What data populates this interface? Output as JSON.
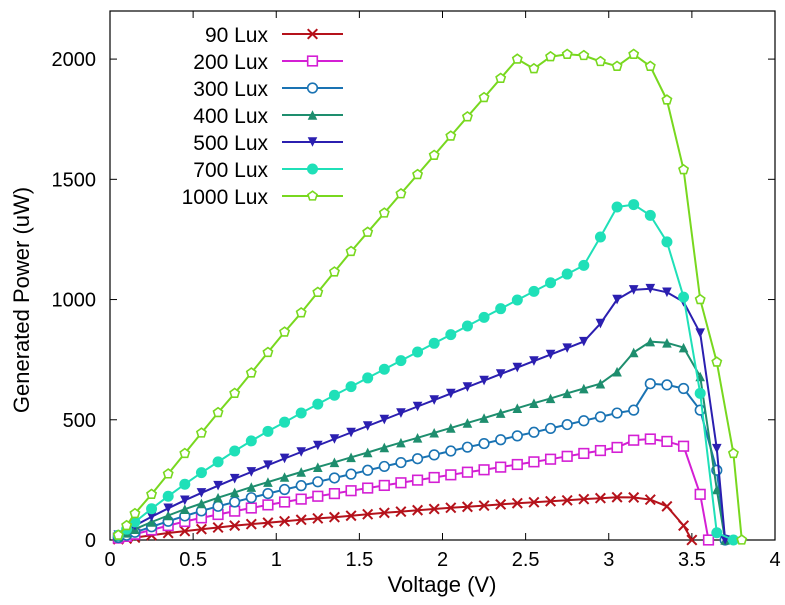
{
  "chart_data": {
    "type": "line",
    "title": "",
    "xlabel": "Voltage (V)",
    "ylabel": "Generated Power (uW)",
    "xlim": [
      0,
      4
    ],
    "ylim": [
      0,
      2200
    ],
    "xticks": [
      0,
      0.5,
      1,
      1.5,
      2,
      2.5,
      3,
      3.5,
      4
    ],
    "yticks": [
      0,
      500,
      1000,
      1500,
      2000
    ],
    "grid": false,
    "legend_position": "top-left",
    "series": [
      {
        "name": "90 Lux",
        "color": "#b5121b",
        "marker": "x",
        "x": [
          0.05,
          0.1,
          0.15,
          0.25,
          0.35,
          0.45,
          0.55,
          0.65,
          0.75,
          0.85,
          0.95,
          1.05,
          1.15,
          1.25,
          1.35,
          1.45,
          1.55,
          1.65,
          1.75,
          1.85,
          1.95,
          2.05,
          2.15,
          2.25,
          2.35,
          2.45,
          2.55,
          2.65,
          2.75,
          2.85,
          2.95,
          3.05,
          3.15,
          3.25,
          3.35,
          3.45,
          3.5
        ],
        "y": [
          3,
          6,
          10,
          20,
          29,
          37,
          45,
          52,
          60,
          66,
          72,
          78,
          84,
          90,
          95,
          101,
          107,
          113,
          118,
          124,
          129,
          134,
          138,
          143,
          148,
          153,
          157,
          161,
          165,
          170,
          174,
          178,
          177,
          168,
          140,
          60,
          0
        ]
      },
      {
        "name": "200 Lux",
        "color": "#d41fd4",
        "marker": "square",
        "x": [
          0.05,
          0.1,
          0.15,
          0.25,
          0.35,
          0.45,
          0.55,
          0.65,
          0.75,
          0.85,
          0.95,
          1.05,
          1.15,
          1.25,
          1.35,
          1.45,
          1.55,
          1.65,
          1.75,
          1.85,
          1.95,
          2.05,
          2.15,
          2.25,
          2.35,
          2.45,
          2.55,
          2.65,
          2.75,
          2.85,
          2.95,
          3.05,
          3.15,
          3.25,
          3.35,
          3.45,
          3.55,
          3.6
        ],
        "y": [
          8,
          15,
          24,
          42,
          60,
          77,
          92,
          106,
          120,
          133,
          146,
          158,
          170,
          182,
          193,
          205,
          216,
          227,
          238,
          249,
          260,
          271,
          282,
          292,
          303,
          314,
          325,
          336,
          348,
          360,
          372,
          385,
          415,
          420,
          410,
          390,
          190,
          0
        ]
      },
      {
        "name": "300 Lux",
        "color": "#1a73b3",
        "marker": "circle",
        "x": [
          0.05,
          0.1,
          0.15,
          0.25,
          0.35,
          0.45,
          0.55,
          0.65,
          0.75,
          0.85,
          0.95,
          1.05,
          1.15,
          1.25,
          1.35,
          1.45,
          1.55,
          1.65,
          1.75,
          1.85,
          1.95,
          2.05,
          2.15,
          2.25,
          2.35,
          2.45,
          2.55,
          2.65,
          2.75,
          2.85,
          2.95,
          3.05,
          3.15,
          3.25,
          3.35,
          3.45,
          3.55,
          3.65,
          3.7
        ],
        "y": [
          10,
          20,
          32,
          55,
          78,
          100,
          121,
          140,
          158,
          176,
          193,
          210,
          226,
          242,
          258,
          274,
          290,
          306,
          322,
          338,
          354,
          370,
          386,
          401,
          417,
          433,
          448,
          464,
          480,
          496,
          512,
          528,
          540,
          650,
          645,
          630,
          540,
          290,
          0
        ]
      },
      {
        "name": "400 Lux",
        "color": "#1e8e6e",
        "marker": "triangle-up",
        "x": [
          0.05,
          0.1,
          0.15,
          0.25,
          0.35,
          0.45,
          0.55,
          0.65,
          0.75,
          0.85,
          0.95,
          1.05,
          1.15,
          1.25,
          1.35,
          1.45,
          1.55,
          1.65,
          1.75,
          1.85,
          1.95,
          2.05,
          2.15,
          2.25,
          2.35,
          2.45,
          2.55,
          2.65,
          2.75,
          2.85,
          2.95,
          3.05,
          3.15,
          3.25,
          3.35,
          3.45,
          3.55,
          3.65,
          3.7
        ],
        "y": [
          15,
          30,
          45,
          75,
          102,
          128,
          152,
          176,
          198,
          220,
          241,
          262,
          283,
          303,
          323,
          344,
          364,
          385,
          405,
          425,
          446,
          466,
          487,
          507,
          528,
          548,
          569,
          589,
          610,
          630,
          650,
          700,
          780,
          825,
          820,
          800,
          680,
          210,
          0
        ]
      },
      {
        "name": "500 Lux",
        "color": "#2b1fb0",
        "marker": "triangle-down",
        "x": [
          0.05,
          0.1,
          0.15,
          0.25,
          0.35,
          0.45,
          0.55,
          0.65,
          0.75,
          0.85,
          0.95,
          1.05,
          1.15,
          1.25,
          1.35,
          1.45,
          1.55,
          1.65,
          1.75,
          1.85,
          1.95,
          2.05,
          2.15,
          2.25,
          2.35,
          2.45,
          2.55,
          2.65,
          2.75,
          2.85,
          2.95,
          3.05,
          3.15,
          3.25,
          3.35,
          3.45,
          3.55,
          3.65,
          3.7
        ],
        "y": [
          20,
          40,
          60,
          97,
          132,
          165,
          196,
          226,
          255,
          283,
          311,
          339,
          366,
          393,
          420,
          447,
          474,
          501,
          528,
          555,
          582,
          609,
          636,
          663,
          690,
          717,
          744,
          771,
          798,
          825,
          900,
          1000,
          1040,
          1045,
          1030,
          990,
          860,
          380,
          0
        ]
      },
      {
        "name": "700 Lux",
        "color": "#1fe0b8",
        "marker": "circle-filled",
        "x": [
          0.05,
          0.1,
          0.15,
          0.25,
          0.35,
          0.45,
          0.55,
          0.65,
          0.75,
          0.85,
          0.95,
          1.05,
          1.15,
          1.25,
          1.35,
          1.45,
          1.55,
          1.65,
          1.75,
          1.85,
          1.95,
          2.05,
          2.15,
          2.25,
          2.35,
          2.45,
          2.55,
          2.65,
          2.75,
          2.85,
          2.95,
          3.05,
          3.15,
          3.25,
          3.35,
          3.45,
          3.55,
          3.65,
          3.75
        ],
        "y": [
          20,
          45,
          75,
          130,
          182,
          232,
          280,
          325,
          370,
          412,
          452,
          490,
          528,
          565,
          602,
          638,
          674,
          710,
          746,
          782,
          818,
          854,
          890,
          926,
          962,
          998,
          1034,
          1070,
          1106,
          1142,
          1260,
          1385,
          1395,
          1350,
          1240,
          1010,
          610,
          30,
          0
        ]
      },
      {
        "name": "1000 Lux",
        "color": "#78d81f",
        "marker": "pentagon",
        "x": [
          0.05,
          0.1,
          0.15,
          0.25,
          0.35,
          0.45,
          0.55,
          0.65,
          0.75,
          0.85,
          0.95,
          1.05,
          1.15,
          1.25,
          1.35,
          1.45,
          1.55,
          1.65,
          1.75,
          1.85,
          1.95,
          2.05,
          2.15,
          2.25,
          2.35,
          2.45,
          2.55,
          2.65,
          2.75,
          2.85,
          2.95,
          3.05,
          3.15,
          3.25,
          3.35,
          3.45,
          3.55,
          3.65,
          3.75,
          3.8
        ],
        "y": [
          20,
          60,
          110,
          190,
          275,
          360,
          445,
          530,
          610,
          695,
          780,
          865,
          945,
          1030,
          1115,
          1200,
          1280,
          1360,
          1440,
          1520,
          1600,
          1680,
          1760,
          1840,
          1920,
          2000,
          1960,
          2010,
          2020,
          2015,
          1990,
          1970,
          2020,
          1970,
          1830,
          1540,
          1000,
          740,
          360,
          0
        ]
      }
    ]
  }
}
